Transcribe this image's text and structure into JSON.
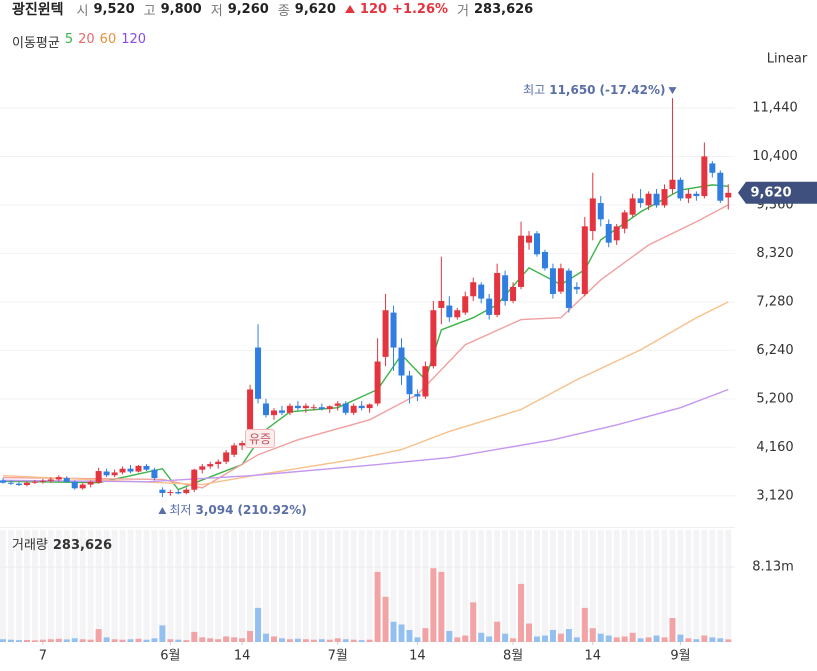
{
  "header": {
    "name": "광진윈텍",
    "items": [
      {
        "label": "시",
        "value": "9,520"
      },
      {
        "label": "고",
        "value": "9,800"
      },
      {
        "label": "저",
        "value": "9,260"
      },
      {
        "label": "종",
        "value": "9,620"
      }
    ],
    "change": "120",
    "change_pct": "+1.26%",
    "volume_label": "거",
    "volume": "283,626"
  },
  "chart_data": {
    "type": "candlestick",
    "scale_label": "Linear",
    "ma_title": "이동평균",
    "up_color": "#e3343f",
    "down_color": "#2f7ee0",
    "open": [
      3450,
      3400,
      3380,
      3350,
      3400,
      3420,
      3440,
      3470,
      3500,
      3420,
      3280,
      3360,
      3400,
      3640,
      3560,
      3620,
      3700,
      3640,
      3760,
      3680,
      3250,
      3180,
      3200,
      3180,
      3250,
      3680,
      3750,
      3800,
      3850,
      4000,
      4200,
      4400,
      6300,
      5100,
      4850,
      4950,
      4900,
      5050,
      5000,
      5000,
      5020,
      4980,
      5050,
      5100,
      4900,
      5050,
      5000,
      5100,
      6100,
      7050,
      6300,
      5700,
      5300,
      5250,
      5900,
      7150,
      7200,
      6950,
      7050,
      7400,
      7650,
      7350,
      7000,
      7850,
      7300,
      7600,
      8550,
      8750,
      8350,
      8000,
      7500,
      7950,
      7600,
      7450,
      8800,
      9400,
      8950,
      8600,
      8850,
      9150,
      9500,
      9350,
      9600,
      9350,
      9700,
      9900,
      9500,
      9600,
      9550,
      10250,
      10050,
      9520
    ],
    "high": [
      3500,
      3450,
      3420,
      3420,
      3460,
      3480,
      3520,
      3560,
      3540,
      3450,
      3400,
      3450,
      3720,
      3700,
      3680,
      3750,
      3780,
      3780,
      3800,
      3720,
      3300,
      3250,
      3250,
      3300,
      3700,
      3800,
      3850,
      3900,
      4100,
      4250,
      4300,
      5500,
      6800,
      5200,
      5000,
      5050,
      5100,
      5150,
      5100,
      5080,
      5100,
      5060,
      5150,
      5150,
      5100,
      5150,
      5100,
      6500,
      7450,
      7200,
      6500,
      5800,
      5400,
      6000,
      7300,
      8250,
      7400,
      7150,
      7500,
      7800,
      7700,
      7450,
      8100,
      7950,
      7700,
      9000,
      8800,
      8800,
      8400,
      8100,
      8100,
      8000,
      7700,
      9100,
      10050,
      9550,
      9050,
      8950,
      9250,
      9600,
      9700,
      9650,
      9700,
      9800,
      11650,
      9950,
      9700,
      9650,
      10700,
      10300,
      10100,
      9800
    ],
    "low": [
      3380,
      3350,
      3330,
      3320,
      3370,
      3380,
      3400,
      3430,
      3400,
      3250,
      3250,
      3300,
      3380,
      3520,
      3520,
      3580,
      3600,
      3620,
      3650,
      3450,
      3094,
      3120,
      3150,
      3150,
      3200,
      3600,
      3700,
      3700,
      3800,
      3950,
      4100,
      4350,
      5100,
      4800,
      4750,
      4850,
      4850,
      4950,
      4900,
      4950,
      4950,
      4900,
      4950,
      4850,
      4850,
      4950,
      4900,
      5050,
      5900,
      5800,
      5500,
      5100,
      5150,
      5200,
      5850,
      6800,
      6850,
      6900,
      7000,
      7300,
      7250,
      6900,
      6950,
      7200,
      7250,
      7550,
      8400,
      8250,
      7950,
      7350,
      7450,
      7050,
      7450,
      7400,
      8600,
      8900,
      8450,
      8500,
      8750,
      9100,
      9300,
      9250,
      9300,
      9300,
      9600,
      9450,
      9400,
      9450,
      9500,
      9950,
      9400,
      9260
    ],
    "close": [
      3400,
      3380,
      3350,
      3400,
      3420,
      3440,
      3470,
      3520,
      3420,
      3280,
      3360,
      3420,
      3650,
      3560,
      3620,
      3700,
      3640,
      3760,
      3680,
      3500,
      3180,
      3200,
      3170,
      3250,
      3680,
      3750,
      3800,
      3850,
      4050,
      4200,
      4250,
      5400,
      5200,
      4850,
      4950,
      4900,
      5050,
      5000,
      5050,
      5020,
      4980,
      5040,
      5100,
      4900,
      5050,
      5000,
      5080,
      6000,
      7100,
      6300,
      5700,
      5300,
      5250,
      5900,
      7100,
      7300,
      6950,
      7100,
      7400,
      7700,
      7350,
      7000,
      7900,
      7300,
      7600,
      8700,
      8700,
      8300,
      8000,
      7450,
      8000,
      7150,
      7550,
      8900,
      9500,
      9050,
      8550,
      8900,
      9200,
      9500,
      9400,
      9600,
      9350,
      9700,
      9900,
      9500,
      9600,
      9550,
      10400,
      10050,
      9450,
      9620
    ],
    "ylim": [
      2600,
      12040
    ],
    "yticks": [
      {
        "value": 3120,
        "label": "3,120"
      },
      {
        "value": 4160,
        "label": "4,160"
      },
      {
        "value": 5200,
        "label": "5,200"
      },
      {
        "value": 6240,
        "label": "6,240"
      },
      {
        "value": 7280,
        "label": "7,280"
      },
      {
        "value": 8320,
        "label": "8,320"
      },
      {
        "value": 9360,
        "label": "9,360"
      },
      {
        "value": 10400,
        "label": "10,400"
      },
      {
        "value": 11440,
        "label": "11,440"
      }
    ],
    "xticks": [
      {
        "value": 5,
        "label": "7"
      },
      {
        "value": 21,
        "label": "6월"
      },
      {
        "value": 30,
        "label": "14"
      },
      {
        "value": 42,
        "label": "7월"
      },
      {
        "value": 52,
        "label": "14"
      },
      {
        "value": 64,
        "label": "8월"
      },
      {
        "value": 74,
        "label": "14"
      },
      {
        "value": 85,
        "label": "9월"
      }
    ],
    "grid": true,
    "moving_averages": [
      {
        "name": "5",
        "color": "#3cb449",
        "x": [
          0,
          12,
          20,
          22,
          25,
          30,
          33,
          36,
          42,
          47,
          50,
          53,
          55,
          59,
          62,
          66,
          70,
          73,
          75,
          80,
          85,
          89,
          91
        ],
        "values": [
          3430,
          3400,
          3700,
          3250,
          3460,
          3790,
          4540,
          4920,
          5010,
          5400,
          6145,
          5610,
          6680,
          6940,
          7220,
          8010,
          7650,
          7970,
          8610,
          9210,
          9680,
          9790,
          9760
        ]
      },
      {
        "name": "20",
        "color": "#f2a0a0",
        "x": [
          0,
          20,
          25,
          32,
          37,
          46,
          52,
          58,
          65,
          70,
          75,
          81,
          87,
          91
        ],
        "values": [
          3510,
          3470,
          3290,
          4000,
          4320,
          4750,
          5290,
          6360,
          6900,
          6940,
          7750,
          8500,
          9000,
          9360
        ]
      },
      {
        "name": "60",
        "color": "#f7c08a",
        "x": [
          0,
          25,
          32,
          44,
          50,
          56,
          65,
          72,
          80,
          87,
          91
        ],
        "values": [
          3550,
          3360,
          3570,
          3900,
          4110,
          4500,
          4970,
          5610,
          6250,
          6940,
          7280
        ]
      },
      {
        "name": "120",
        "color": "#c497f0",
        "x": [
          0,
          18,
          31,
          47,
          56,
          69,
          77,
          85,
          91
        ],
        "values": [
          3450,
          3420,
          3550,
          3790,
          3940,
          4320,
          4640,
          5010,
          5400
        ]
      }
    ],
    "last_price": {
      "value": 9620,
      "label": "9,620"
    },
    "high_annotation": {
      "label": "최고",
      "index": 84,
      "value": 11650,
      "value_label": "11,650",
      "change": "(-17.42%)"
    },
    "low_annotation": {
      "label": "최저",
      "index": 20,
      "value": 3094,
      "value_label": "3,094",
      "change": "(210.92%)"
    },
    "event_label": "유증",
    "volume": {
      "title": "거래량",
      "last_label": "283,626",
      "values": [
        300000,
        250000,
        200000,
        220000,
        180000,
        250000,
        300000,
        350000,
        280000,
        400000,
        300000,
        250000,
        1400000,
        500000,
        300000,
        250000,
        300000,
        350000,
        250000,
        400000,
        1800000,
        300000,
        250000,
        200000,
        1100000,
        500000,
        400000,
        300000,
        600000,
        500000,
        400000,
        1200000,
        3700000,
        900000,
        600000,
        400000,
        300000,
        350000,
        300000,
        250000,
        300000,
        250000,
        400000,
        300000,
        250000,
        200000,
        250000,
        7600000,
        4900000,
        2200000,
        1900000,
        1300000,
        500000,
        1500000,
        8000000,
        7600000,
        1200000,
        500000,
        700000,
        4300000,
        1000000,
        600000,
        2200000,
        900000,
        400000,
        6300000,
        2000000,
        600000,
        700000,
        1300000,
        900000,
        1400000,
        500000,
        3700000,
        1500000,
        900000,
        700000,
        500000,
        600000,
        1000000,
        400000,
        500000,
        700000,
        500000,
        2600000,
        800000,
        400000,
        300000,
        700000,
        500000,
        400000,
        283626
      ],
      "up_color": "#f2a3a5",
      "down_color": "#93c0f0",
      "ylim": [
        0,
        12140000
      ],
      "yticks": [
        {
          "value": 8130000,
          "label": "8.13m"
        }
      ]
    }
  }
}
